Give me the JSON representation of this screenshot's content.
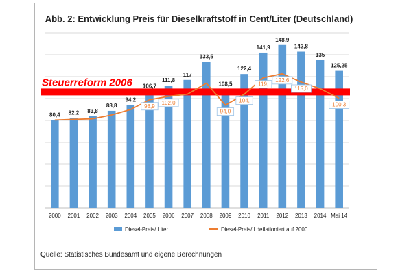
{
  "chart_data": {
    "type": "bar",
    "title": "Abb. 2: Entwicklung Preis für Dieselkraftstoff in Cent/Liter (Deutschland)",
    "categories": [
      "2000",
      "2001",
      "2002",
      "2003",
      "2004",
      "2005",
      "2006",
      "2007",
      "2008",
      "2009",
      "2010",
      "2011",
      "2012",
      "2013",
      "2014",
      "Mai 14"
    ],
    "ylim": [
      0,
      160
    ],
    "grid": true,
    "legend_position": "bottom",
    "series": [
      {
        "name": "Diesel-Preis/ Liter",
        "type": "bar",
        "color": "#5b9bd5",
        "values": [
          80.4,
          82.2,
          83.8,
          88.8,
          94.2,
          106.7,
          111.8,
          117,
          133.5,
          108.5,
          122.4,
          141.9,
          148.9,
          142.8,
          135,
          125.25
        ],
        "labels": [
          "80,4",
          "82,2",
          "83,8",
          "88,8",
          "94,2",
          "106,7",
          "111,8",
          "117",
          "133,5",
          "108,5",
          "122,4",
          "141,9",
          "148,9",
          "142,8",
          "135",
          "125,25"
        ]
      },
      {
        "name": "Diesel-Preis/ l deflationiert auf 2000",
        "type": "line",
        "color": "#ed7d31",
        "values": [
          80.4,
          81,
          81.5,
          85,
          90,
          98.9,
          102,
          104,
          114,
          94,
          104,
          119,
          122.6,
          115,
          109,
          100.3
        ],
        "labeled_points": [
          {
            "index": 5,
            "label": "98,9"
          },
          {
            "index": 6,
            "label": "102,0"
          },
          {
            "index": 9,
            "label": "94,0"
          },
          {
            "index": 10,
            "label": "104,"
          },
          {
            "index": 11,
            "label": "119,"
          },
          {
            "index": 12,
            "label": "122,6"
          },
          {
            "index": 13,
            "label": "115,0"
          },
          {
            "index": 15,
            "label": "100,3"
          }
        ]
      }
    ],
    "annotation": {
      "text": "Steuerreform 2006",
      "y": 106,
      "color": "#ff0000"
    }
  },
  "source": "Quelle: Statistisches Bundesamt und eigene Berechnungen"
}
